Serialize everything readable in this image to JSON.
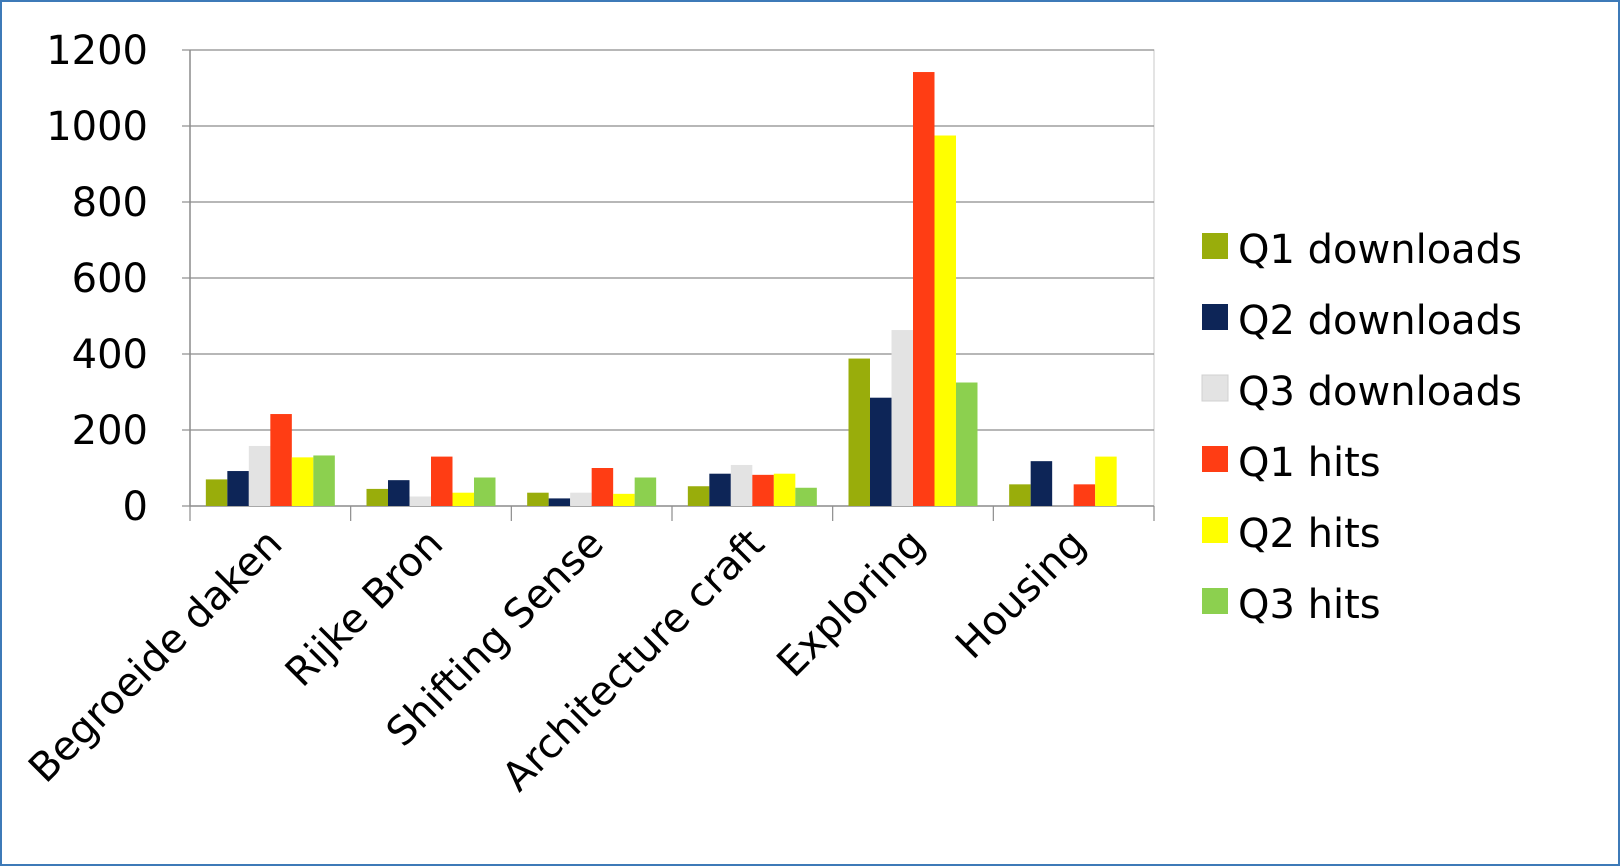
{
  "chart_data": {
    "type": "bar",
    "title": "",
    "xlabel": "",
    "ylabel": "",
    "ylim": [
      0,
      1200
    ],
    "yticks": [
      0,
      200,
      400,
      600,
      800,
      1000,
      1200
    ],
    "grid": true,
    "legend_position": "right",
    "categories": [
      "Begroeide daken",
      "Rijke Bron",
      "Shifting Sense",
      "Architecture craft",
      "Exploring",
      "Housing"
    ],
    "series": [
      {
        "name": "Q1 downloads",
        "color": "#99ad0b",
        "values": [
          70,
          45,
          35,
          52,
          388,
          57
        ]
      },
      {
        "name": "Q2 downloads",
        "color": "#0d2557",
        "values": [
          92,
          68,
          20,
          85,
          285,
          118
        ]
      },
      {
        "name": "Q3 downloads",
        "color": "#e3e3e3",
        "values": [
          158,
          25,
          35,
          108,
          463,
          0
        ]
      },
      {
        "name": "Q1 hits",
        "color": "#ff3d14",
        "values": [
          242,
          130,
          100,
          82,
          1142,
          57
        ]
      },
      {
        "name": "Q2 hits",
        "color": "#ffff00",
        "values": [
          128,
          35,
          32,
          85,
          975,
          130
        ]
      },
      {
        "name": "Q3  hits",
        "color": "#8cd04f",
        "values": [
          133,
          75,
          75,
          48,
          325,
          0
        ]
      }
    ]
  }
}
